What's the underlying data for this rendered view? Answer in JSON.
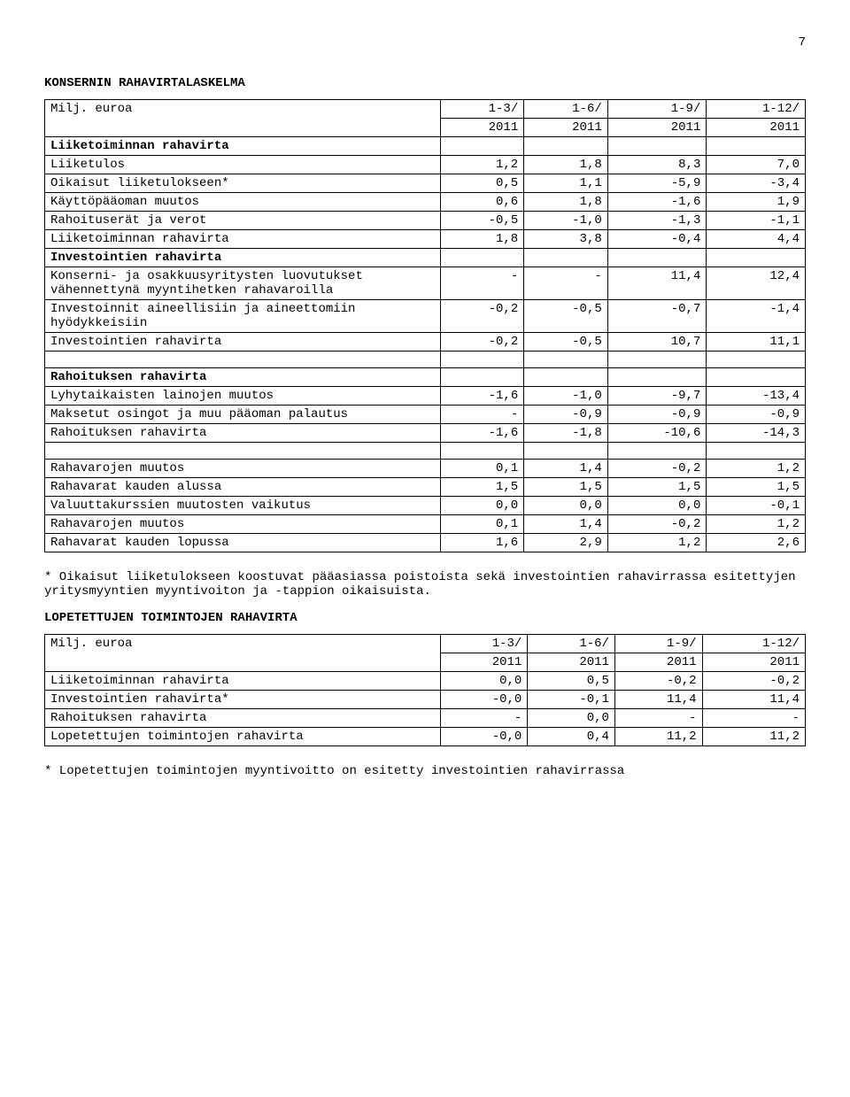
{
  "page_number": "7",
  "title1": "KONSERNIN RAHAVIRTALASKELMA",
  "t1": {
    "header_row_label": "Milj. euroa",
    "cols_top": [
      "1-3/",
      "1-6/",
      "1-9/",
      "1-12/"
    ],
    "cols_bot": [
      "2011",
      "2011",
      "2011",
      "2011"
    ],
    "sec1_head": "Liiketoiminnan rahavirta",
    "r1": {
      "label": "Liiketulos",
      "v": [
        "1,2",
        "1,8",
        "8,3",
        "7,0"
      ]
    },
    "r2": {
      "label": "Oikaisut liiketulokseen*",
      "v": [
        "0,5",
        "1,1",
        "-5,9",
        "-3,4"
      ]
    },
    "r3": {
      "label": "Käyttöpääoman muutos",
      "v": [
        "0,6",
        "1,8",
        "-1,6",
        "1,9"
      ]
    },
    "r4": {
      "label": "Rahoituserät ja verot",
      "v": [
        "-0,5",
        "-1,0",
        "-1,3",
        "-1,1"
      ]
    },
    "r5": {
      "label": "Liiketoiminnan rahavirta",
      "v": [
        "1,8",
        "3,8",
        "-0,4",
        "4,4"
      ]
    },
    "sec2_head": "Investointien rahavirta",
    "r6": {
      "label": "Konserni- ja osakkuusyritysten luovutukset vähennettynä myyntihetken rahavaroilla",
      "v": [
        "-",
        "-",
        "11,4",
        "12,4"
      ]
    },
    "r7": {
      "label": "Investoinnit aineellisiin ja aineettomiin hyödykkeisiin",
      "v": [
        "-0,2",
        "-0,5",
        "-0,7",
        "-1,4"
      ]
    },
    "r8": {
      "label": "Investointien rahavirta",
      "v": [
        "-0,2",
        "-0,5",
        "10,7",
        "11,1"
      ]
    },
    "sec3_head": "Rahoituksen rahavirta",
    "r9": {
      "label": "Lyhytaikaisten lainojen muutos",
      "v": [
        "-1,6",
        "-1,0",
        "-9,7",
        "-13,4"
      ]
    },
    "r10": {
      "label": "Maksetut osingot ja muu pääoman palautus",
      "v": [
        "-",
        "-0,9",
        "-0,9",
        "-0,9"
      ]
    },
    "r11": {
      "label": "Rahoituksen rahavirta",
      "v": [
        "-1,6",
        "-1,8",
        "-10,6",
        "-14,3"
      ]
    },
    "r12": {
      "label": "Rahavarojen muutos",
      "v": [
        "0,1",
        "1,4",
        "-0,2",
        "1,2"
      ]
    },
    "r13": {
      "label": "Rahavarat kauden alussa",
      "v": [
        "1,5",
        "1,5",
        "1,5",
        "1,5"
      ]
    },
    "r14": {
      "label": "Valuuttakurssien muutosten vaikutus",
      "v": [
        "0,0",
        "0,0",
        "0,0",
        "-0,1"
      ]
    },
    "r15": {
      "label": "Rahavarojen muutos",
      "v": [
        "0,1",
        "1,4",
        "-0,2",
        "1,2"
      ]
    },
    "r16": {
      "label": "Rahavarat kauden lopussa",
      "v": [
        "1,6",
        "2,9",
        "1,2",
        "2,6"
      ]
    }
  },
  "note1": "* Oikaisut liiketulokseen koostuvat pääasiassa poistoista sekä investointien rahavirrassa esitettyjen yritysmyyntien myyntivoiton ja -tappion oikaisuista.",
  "title2": "LOPETETTUJEN TOIMINTOJEN RAHAVIRTA",
  "t2": {
    "header_row_label": "Milj. euroa",
    "cols_top": [
      "1-3/",
      "1-6/",
      "1-9/",
      "1-12/"
    ],
    "cols_bot": [
      "2011",
      "2011",
      "2011",
      "2011"
    ],
    "r1": {
      "label": "Liiketoiminnan rahavirta",
      "v": [
        "0,0",
        "0,5",
        "-0,2",
        "-0,2"
      ]
    },
    "r2": {
      "label": "Investointien rahavirta*",
      "v": [
        "-0,0",
        "-0,1",
        "11,4",
        "11,4"
      ]
    },
    "r3": {
      "label": "Rahoituksen rahavirta",
      "v": [
        "-",
        "0,0",
        "-",
        "-"
      ]
    },
    "r4": {
      "label": "Lopetettujen toimintojen rahavirta",
      "v": [
        "-0,0",
        "0,4",
        "11,2",
        "11,2"
      ]
    }
  },
  "note2": "* Lopetettujen toimintojen myyntivoitto on esitetty investointien rahavirrassa"
}
